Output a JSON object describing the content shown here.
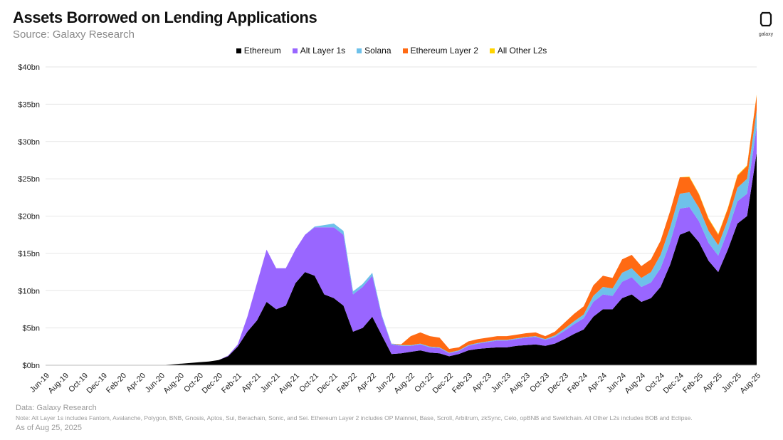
{
  "title": "Assets Borrowed on Lending Applications",
  "subtitle": "Source: Galaxy Research",
  "logo_text": "galaxy",
  "footer": {
    "data": "Data: Galaxy Research",
    "note": "Note: Alt Layer 1s includes Fantom, Avalanche, Polygon, BNB, Gnosis, Aptos, Sui, Berachain, Sonic, and Sei. Ethereum Layer 2 includes OP Mainnet, Base, Scroll, Arbitrum, zkSync, Celo, opBNB and Swellchain. All Other L2s includes BOB and Eclipse.",
    "asof": "As of Aug 25, 2025"
  },
  "colors": {
    "Ethereum": "#000000",
    "Alt Layer 1s": "#9966ff",
    "Solana": "#6ec1ea",
    "Ethereum Layer 2": "#ff6a13",
    "All Other L2s": "#ffd400",
    "grid": "#e6e6e6"
  },
  "chart_data": {
    "type": "area",
    "stacked": true,
    "title": "Assets Borrowed on Lending Applications",
    "xlabel": "",
    "ylabel": "",
    "ylim": [
      0,
      40
    ],
    "yticks": [
      0,
      5,
      10,
      15,
      20,
      25,
      30,
      35,
      40
    ],
    "ytick_labels": [
      "$0bn",
      "$5bn",
      "$10bn",
      "$15bn",
      "$20bn",
      "$25bn",
      "$30bn",
      "$35bn",
      "$40bn"
    ],
    "xtick_labels": [
      "Jun-19",
      "Aug-19",
      "Oct-19",
      "Dec-19",
      "Feb-20",
      "Apr-20",
      "Jun-20",
      "Aug-20",
      "Oct-20",
      "Dec-20",
      "Feb-21",
      "Apr-21",
      "Jun-21",
      "Aug-21",
      "Oct-21",
      "Dec-21",
      "Feb-22",
      "Apr-22",
      "Jun-22",
      "Aug-22",
      "Oct-22",
      "Dec-22",
      "Feb-23",
      "Apr-23",
      "Jun-23",
      "Aug-23",
      "Oct-23",
      "Dec-23",
      "Feb-24",
      "Apr-24",
      "Jun-24",
      "Aug-24",
      "Oct-24",
      "Dec-24",
      "Feb-25",
      "Apr-25",
      "Jun-25",
      "Aug-25"
    ],
    "legend_position": "top-center",
    "grid": true,
    "x": [
      "Jun-19",
      "Jul-19",
      "Aug-19",
      "Sep-19",
      "Oct-19",
      "Nov-19",
      "Dec-19",
      "Jan-20",
      "Feb-20",
      "Mar-20",
      "Apr-20",
      "May-20",
      "Jun-20",
      "Jul-20",
      "Aug-20",
      "Sep-20",
      "Oct-20",
      "Nov-20",
      "Dec-20",
      "Jan-21",
      "Feb-21",
      "Mar-21",
      "Apr-21",
      "May-21",
      "Jun-21",
      "Jul-21",
      "Aug-21",
      "Sep-21",
      "Oct-21",
      "Nov-21",
      "Dec-21",
      "Jan-22",
      "Feb-22",
      "Mar-22",
      "Apr-22",
      "May-22",
      "Jun-22",
      "Jul-22",
      "Aug-22",
      "Sep-22",
      "Oct-22",
      "Nov-22",
      "Dec-22",
      "Jan-23",
      "Feb-23",
      "Mar-23",
      "Apr-23",
      "May-23",
      "Jun-23",
      "Jul-23",
      "Aug-23",
      "Sep-23",
      "Oct-23",
      "Nov-23",
      "Dec-23",
      "Jan-24",
      "Feb-24",
      "Mar-24",
      "Apr-24",
      "May-24",
      "Jun-24",
      "Jul-24",
      "Aug-24",
      "Sep-24",
      "Oct-24",
      "Nov-24",
      "Dec-24",
      "Jan-25",
      "Feb-25",
      "Mar-25",
      "Apr-25",
      "May-25",
      "Jun-25",
      "Jul-25",
      "Aug-25"
    ],
    "series": [
      {
        "name": "Ethereum",
        "values": [
          0,
          0,
          0,
          0,
          0,
          0,
          0,
          0,
          0,
          0,
          0,
          0,
          0,
          0.1,
          0.2,
          0.3,
          0.4,
          0.5,
          0.7,
          1.2,
          2.5,
          4.5,
          6.0,
          8.5,
          7.5,
          8.0,
          11.0,
          12.5,
          12.0,
          9.5,
          9.0,
          8.0,
          4.5,
          5.0,
          6.5,
          4.0,
          1.5,
          1.6,
          1.8,
          2.0,
          1.7,
          1.6,
          1.2,
          1.5,
          2.0,
          2.2,
          2.3,
          2.4,
          2.4,
          2.6,
          2.7,
          2.8,
          2.6,
          2.9,
          3.5,
          4.2,
          4.8,
          6.5,
          7.5,
          7.5,
          9.0,
          9.5,
          8.5,
          9.0,
          10.5,
          13.5,
          17.5,
          18.0,
          16.5,
          14.0,
          12.5,
          15.5,
          19.0,
          20.0,
          28.5
        ]
      },
      {
        "name": "Alt Layer 1s",
        "values": [
          0,
          0,
          0,
          0,
          0,
          0,
          0,
          0,
          0,
          0,
          0,
          0,
          0,
          0,
          0,
          0,
          0,
          0,
          0,
          0.1,
          0.3,
          2.0,
          5.0,
          7.0,
          5.5,
          5.0,
          4.5,
          5.0,
          6.5,
          9.0,
          9.5,
          9.5,
          5.0,
          5.5,
          5.5,
          2.5,
          1.3,
          1.0,
          0.8,
          0.8,
          0.7,
          0.7,
          0.4,
          0.4,
          0.6,
          0.7,
          0.8,
          0.9,
          0.9,
          0.9,
          1.0,
          1.0,
          0.8,
          0.9,
          1.1,
          1.3,
          1.5,
          2.0,
          2.0,
          1.8,
          2.2,
          2.3,
          2.0,
          2.1,
          2.5,
          3.0,
          3.5,
          3.2,
          2.8,
          2.4,
          2.2,
          2.5,
          3.0,
          3.0,
          3.5
        ]
      },
      {
        "name": "Solana",
        "values": [
          0,
          0,
          0,
          0,
          0,
          0,
          0,
          0,
          0,
          0,
          0,
          0,
          0,
          0,
          0,
          0,
          0,
          0,
          0,
          0,
          0,
          0,
          0,
          0,
          0,
          0,
          0,
          0,
          0.1,
          0.3,
          0.5,
          0.5,
          0.4,
          0.4,
          0.4,
          0.2,
          0.1,
          0.1,
          0.1,
          0.1,
          0.1,
          0.1,
          0.1,
          0.1,
          0.1,
          0.1,
          0.1,
          0.1,
          0.1,
          0.1,
          0.1,
          0.1,
          0.1,
          0.2,
          0.3,
          0.4,
          0.5,
          0.8,
          1.0,
          1.0,
          1.2,
          1.2,
          1.2,
          1.4,
          1.8,
          2.0,
          2.0,
          2.0,
          1.8,
          1.6,
          1.4,
          1.5,
          1.8,
          2.0,
          2.2
        ]
      },
      {
        "name": "Ethereum Layer 2",
        "values": [
          0,
          0,
          0,
          0,
          0,
          0,
          0,
          0,
          0,
          0,
          0,
          0,
          0,
          0,
          0,
          0,
          0,
          0,
          0,
          0,
          0,
          0,
          0,
          0,
          0,
          0,
          0,
          0,
          0,
          0,
          0,
          0,
          0,
          0,
          0,
          0,
          0,
          0.1,
          1.2,
          1.5,
          1.4,
          1.3,
          0.5,
          0.4,
          0.5,
          0.5,
          0.5,
          0.5,
          0.5,
          0.5,
          0.5,
          0.5,
          0.4,
          0.5,
          0.8,
          1.0,
          1.1,
          1.4,
          1.5,
          1.4,
          1.8,
          1.8,
          1.6,
          1.7,
          1.9,
          2.2,
          2.2,
          2.0,
          1.8,
          1.6,
          1.4,
          1.5,
          1.6,
          1.7,
          2.0
        ]
      },
      {
        "name": "All Other L2s",
        "values": [
          0,
          0,
          0,
          0,
          0,
          0,
          0,
          0,
          0,
          0,
          0,
          0,
          0,
          0,
          0,
          0,
          0,
          0,
          0,
          0,
          0,
          0,
          0,
          0,
          0,
          0,
          0,
          0,
          0,
          0,
          0,
          0,
          0,
          0,
          0,
          0,
          0,
          0,
          0,
          0,
          0,
          0,
          0,
          0,
          0,
          0,
          0,
          0,
          0,
          0,
          0,
          0,
          0,
          0,
          0,
          0,
          0,
          0,
          0,
          0,
          0,
          0,
          0,
          0,
          0,
          0,
          0,
          0.1,
          0.1,
          0.1,
          0.1,
          0.1,
          0.1,
          0.1,
          0.1
        ]
      }
    ]
  }
}
